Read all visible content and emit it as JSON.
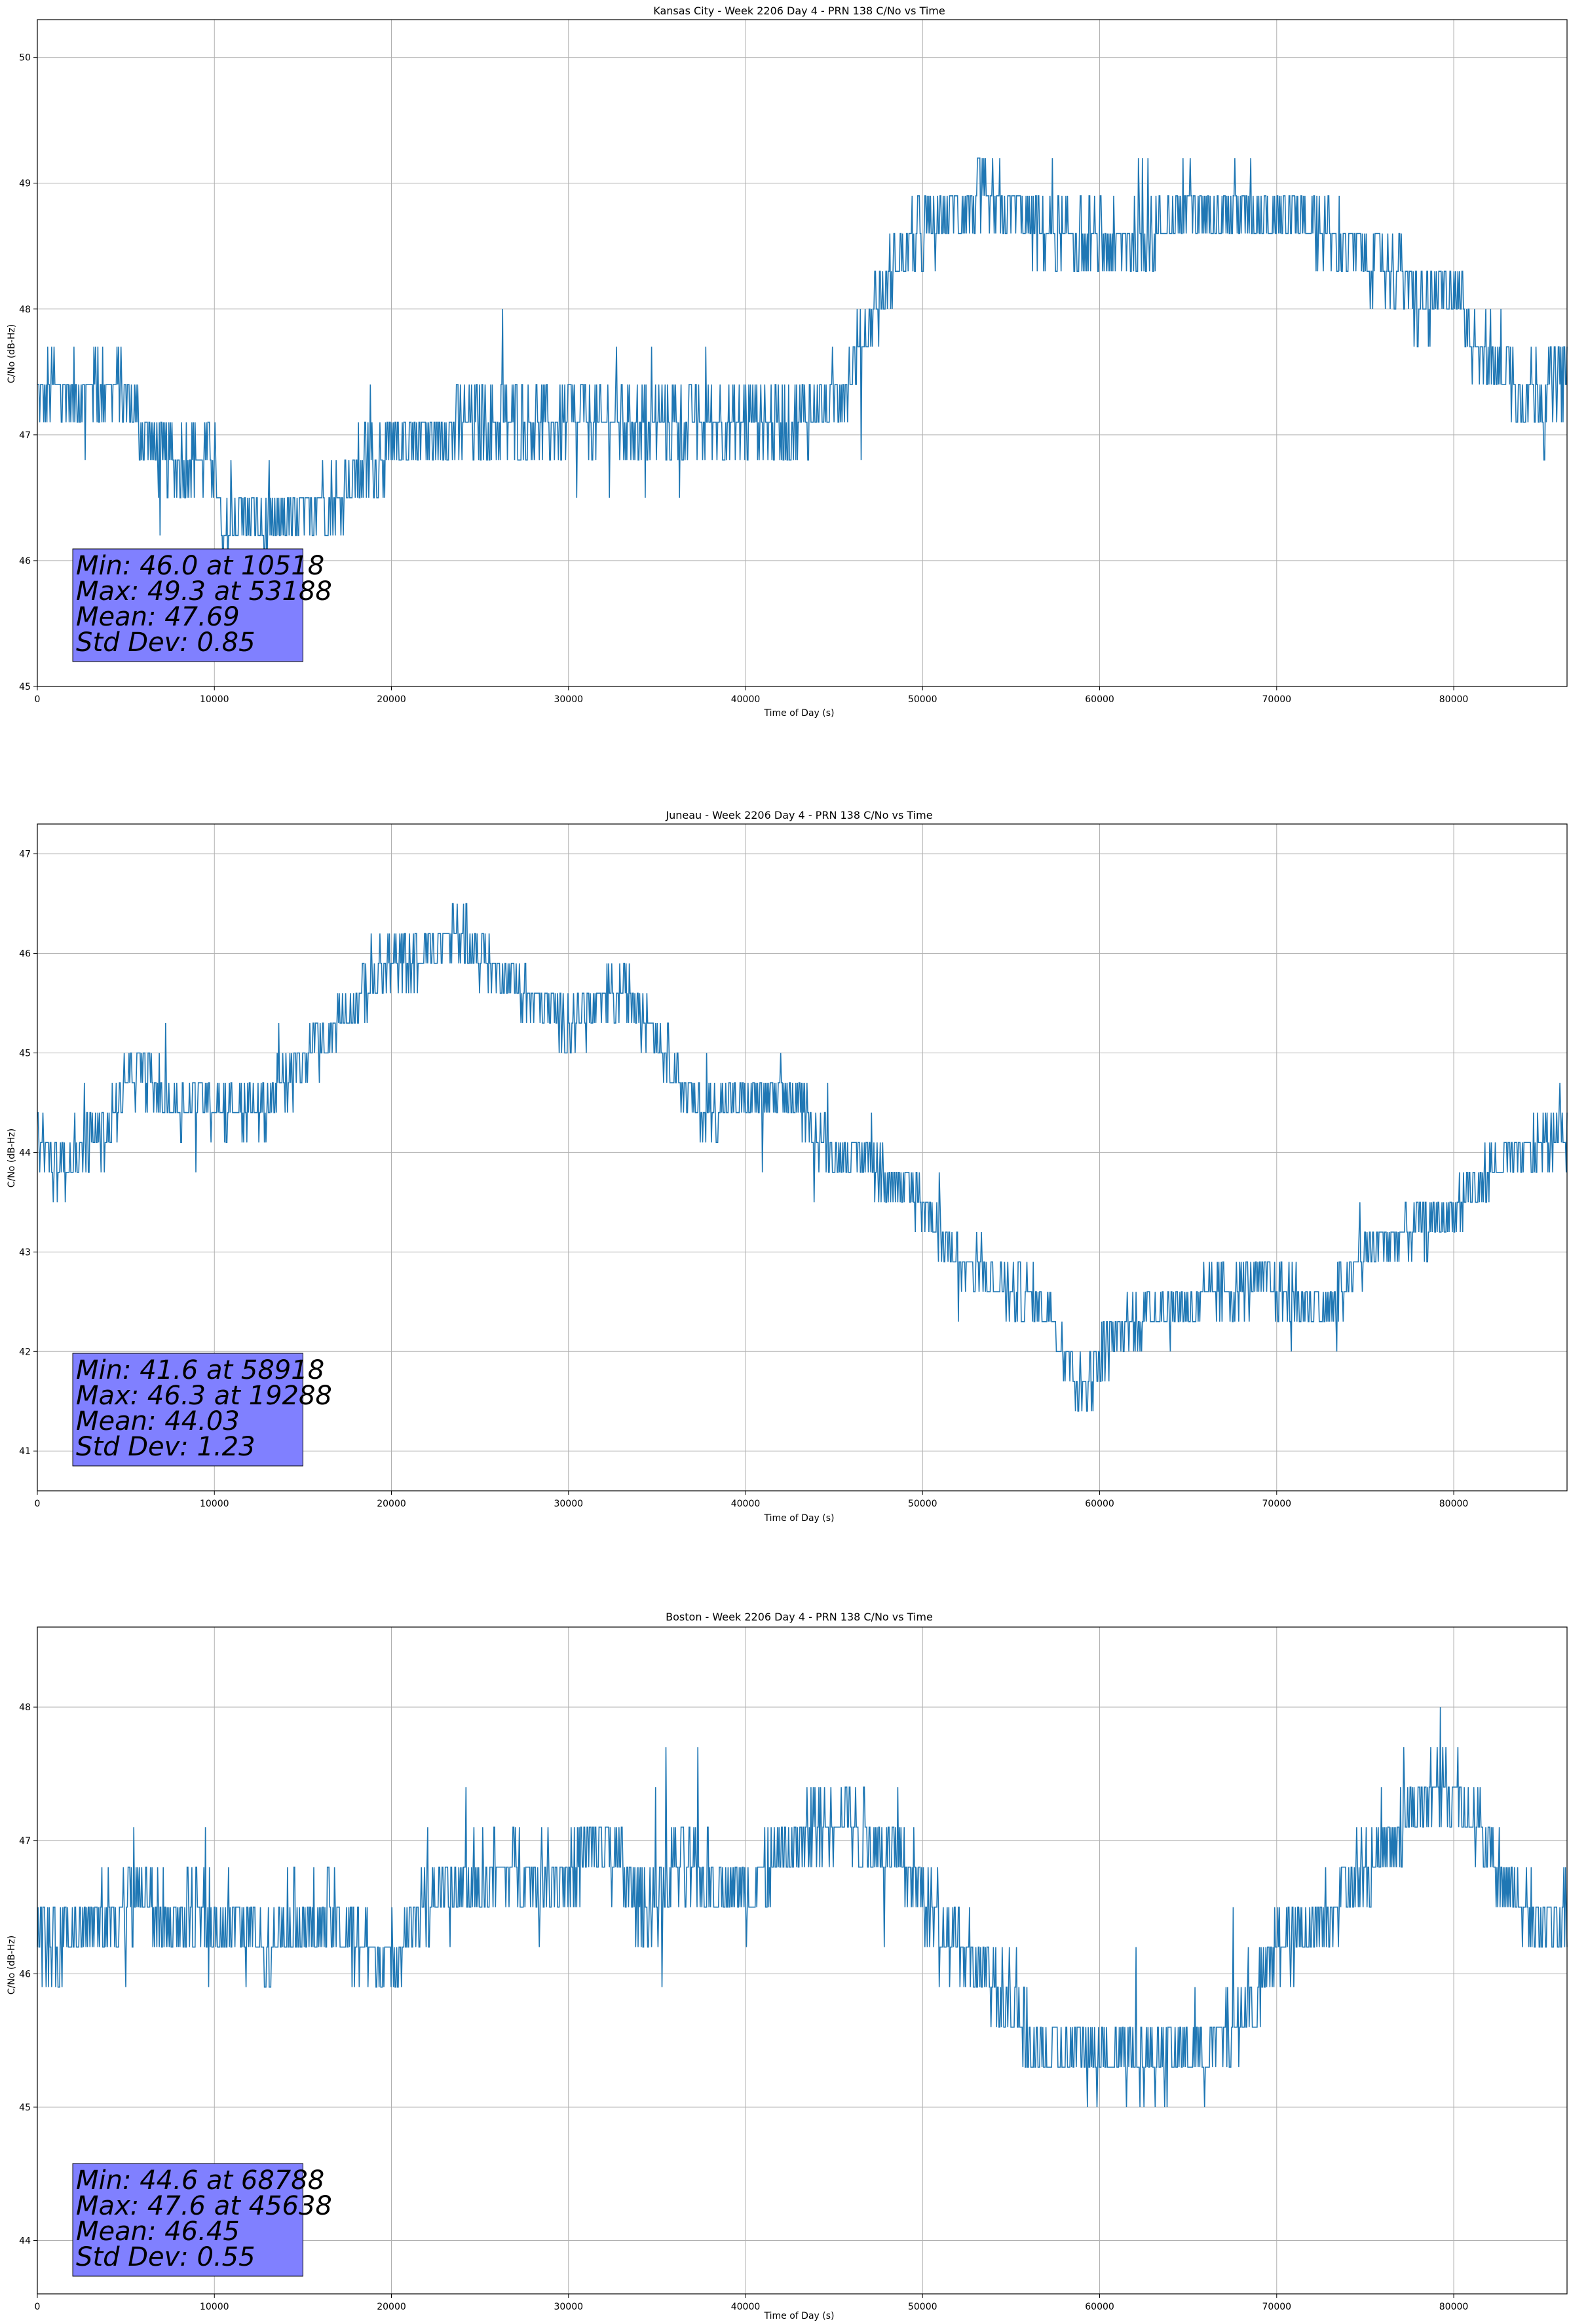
{
  "style": {
    "series_color": "#1f77b4",
    "grid_color": "#b0b0b0",
    "stats_box_color": "#8080ff",
    "axis_color": "#000000"
  },
  "chart_data": [
    {
      "type": "line",
      "title": "Kansas City - Week 2206 Day 4 - PRN 138 C/No vs Time",
      "xlabel": "Time of Day (s)",
      "ylabel": "C/No (dB-Hz)",
      "xlim": [
        0,
        86400
      ],
      "ylim": [
        45,
        50.3
      ],
      "xticks": [
        0,
        10000,
        20000,
        30000,
        40000,
        50000,
        60000,
        70000,
        80000
      ],
      "yticks": [
        45,
        46,
        47,
        48,
        49,
        50
      ],
      "grid": true,
      "series": [
        {
          "x": [
            0,
            1000,
            2000,
            3000,
            4000,
            5000,
            6000,
            7000,
            8000,
            9000,
            10000,
            10518,
            11000,
            12000,
            13000,
            14000,
            15000,
            16000,
            17000,
            18000,
            19000,
            20000,
            22000,
            25000,
            30000,
            35000,
            40000,
            43000,
            45000,
            46000,
            47000,
            48000,
            49000,
            50000,
            52000,
            53188,
            55000,
            57000,
            60000,
            63000,
            65000,
            68000,
            70000,
            72000,
            75000,
            77000,
            78000,
            79000,
            80000,
            81000,
            82000,
            83000,
            84000,
            85000,
            86400
          ],
          "y": [
            47.3,
            47.4,
            47.3,
            47.4,
            47.4,
            47.3,
            47.0,
            46.8,
            46.8,
            46.8,
            46.8,
            46.0,
            46.4,
            46.3,
            46.2,
            46.3,
            46.3,
            46.5,
            46.5,
            46.7,
            46.8,
            46.9,
            47.0,
            47.1,
            47.1,
            47.1,
            47.1,
            47.1,
            47.3,
            47.5,
            47.9,
            48.2,
            48.5,
            48.6,
            48.8,
            48.8,
            48.8,
            48.6,
            48.5,
            48.6,
            48.8,
            48.8,
            48.8,
            48.7,
            48.4,
            48.3,
            48.0,
            48.1,
            48.2,
            47.8,
            47.6,
            47.5,
            47.3,
            47.4,
            47.5
          ]
        }
      ],
      "stats": [
        "Min: 46.0 at 10518",
        "Max: 49.3 at 53188",
        "Mean: 47.69",
        "Std Dev: 0.85"
      ]
    },
    {
      "type": "line",
      "title": "Juneau - Week 2206 Day 4 - PRN 138 C/No vs Time",
      "xlabel": "Time of Day (s)",
      "ylabel": "C/No (dB-Hz)",
      "xlim": [
        0,
        86400
      ],
      "ylim": [
        40.6,
        47.3
      ],
      "xticks": [
        0,
        10000,
        20000,
        30000,
        40000,
        50000,
        60000,
        70000,
        80000
      ],
      "yticks": [
        41,
        42,
        43,
        44,
        45,
        46,
        47
      ],
      "grid": true,
      "series": [
        {
          "x": [
            0,
            1000,
            2000,
            3000,
            4000,
            5000,
            6000,
            7000,
            8000,
            10000,
            12000,
            13000,
            14000,
            15000,
            16000,
            17000,
            18000,
            19288,
            20000,
            22000,
            24000,
            25000,
            26000,
            27000,
            28000,
            29000,
            30000,
            31000,
            32000,
            33000,
            34000,
            35000,
            36000,
            37000,
            38000,
            40000,
            42000,
            43000,
            44000,
            45000,
            46000,
            47000,
            48000,
            50000,
            51000,
            52000,
            53000,
            55000,
            57000,
            58918,
            60000,
            61000,
            62000,
            63000,
            65000,
            67000,
            69000,
            71000,
            73000,
            74000,
            75000,
            77000,
            79000,
            80000,
            81000,
            82000,
            83000,
            84000,
            85000,
            86400
          ],
          "y": [
            44.2,
            43.8,
            44.0,
            44.1,
            44.2,
            44.7,
            44.8,
            44.6,
            44.5,
            44.5,
            44.4,
            44.5,
            44.7,
            44.9,
            45.1,
            45.3,
            45.5,
            45.8,
            45.9,
            46.0,
            46.2,
            46.0,
            45.8,
            45.7,
            45.5,
            45.4,
            45.3,
            45.4,
            45.5,
            45.6,
            45.5,
            45.2,
            44.8,
            44.5,
            44.4,
            44.5,
            44.6,
            44.5,
            44.2,
            44.0,
            44.0,
            43.9,
            43.8,
            43.5,
            43.2,
            42.9,
            42.8,
            42.6,
            42.5,
            41.6,
            41.9,
            42.2,
            42.3,
            42.4,
            42.5,
            42.6,
            42.7,
            42.5,
            42.4,
            42.7,
            43.0,
            43.2,
            43.3,
            43.4,
            43.6,
            43.8,
            43.9,
            44.0,
            44.1,
            44.3
          ]
        }
      ],
      "stats": [
        "Min: 41.6 at 58918",
        "Max: 46.3 at 19288",
        "Mean: 44.03",
        "Std Dev: 1.23"
      ]
    },
    {
      "type": "line",
      "title": "Boston - Week 2206 Day 4 - PRN 138 C/No vs Time",
      "xlabel": "Time of Day (s)",
      "ylabel": "C/No (dB-Hz)",
      "xlim": [
        0,
        86400
      ],
      "ylim": [
        43.6,
        48.6
      ],
      "xticks": [
        0,
        10000,
        20000,
        30000,
        40000,
        50000,
        60000,
        70000,
        80000
      ],
      "yticks": [
        44,
        45,
        46,
        47,
        48
      ],
      "grid": true,
      "series": [
        {
          "x": [
            0,
            1000,
            2000,
            4000,
            6000,
            7000,
            8000,
            10000,
            12000,
            13000,
            14000,
            15000,
            17000,
            18000,
            19000,
            20000,
            21000,
            23000,
            25000,
            27000,
            29000,
            30000,
            31000,
            32000,
            33000,
            34000,
            35000,
            36000,
            38000,
            40000,
            42000,
            44000,
            45638,
            47000,
            49000,
            50000,
            51000,
            52000,
            53000,
            54000,
            55000,
            56000,
            57000,
            59000,
            62000,
            65000,
            67000,
            68788,
            69000,
            70000,
            71000,
            72000,
            73000,
            75000,
            76000,
            77000,
            78000,
            79000,
            80000,
            81000,
            82000,
            83000,
            84000,
            85000,
            86400
          ],
          "y": [
            46.3,
            46.2,
            46.4,
            46.4,
            46.6,
            46.4,
            46.4,
            46.4,
            46.3,
            46.2,
            46.4,
            46.4,
            46.4,
            46.2,
            46.1,
            46.1,
            46.4,
            46.6,
            46.7,
            46.8,
            46.7,
            46.7,
            46.9,
            47.0,
            46.8,
            46.5,
            46.6,
            46.8,
            46.7,
            46.6,
            46.9,
            47.1,
            47.2,
            47.0,
            46.8,
            46.6,
            46.4,
            46.3,
            46.1,
            45.9,
            45.7,
            45.5,
            45.4,
            45.4,
            45.4,
            45.4,
            45.5,
            45.8,
            45.9,
            46.2,
            46.3,
            46.4,
            46.5,
            46.8,
            47.0,
            47.1,
            47.3,
            47.4,
            47.4,
            47.2,
            46.9,
            46.7,
            46.5,
            46.3,
            46.5
          ]
        }
      ],
      "stats": [
        "Min: 44.6 at 68788",
        "Max: 47.6 at 45638",
        "Mean: 46.45",
        "Std Dev: 0.55"
      ]
    }
  ]
}
